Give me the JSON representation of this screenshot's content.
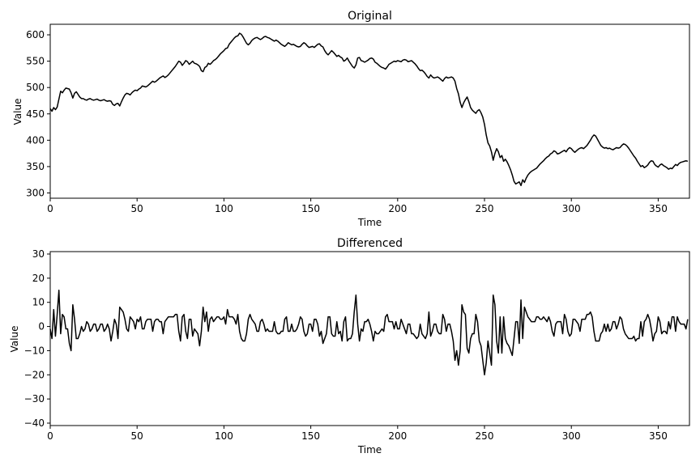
{
  "chart_data": [
    {
      "type": "line",
      "title": "Original",
      "xlabel": "Time",
      "ylabel": "Value",
      "xlim": [
        0,
        368
      ],
      "ylim": [
        290,
        620
      ],
      "xticks": [
        0,
        50,
        100,
        150,
        200,
        250,
        300,
        350
      ],
      "yticks": [
        300,
        350,
        400,
        450,
        500,
        550,
        600
      ],
      "grid": false,
      "line_color": "#000000",
      "series": [
        {
          "x_start": 0,
          "x_step": 1,
          "values": [
            460,
            455,
            462,
            458,
            463,
            478,
            493,
            490,
            495,
            499,
            498,
            497,
            490,
            480,
            489,
            492,
            487,
            482,
            479,
            479,
            477,
            476,
            478,
            479,
            477,
            476,
            477,
            478,
            476,
            475,
            476,
            477,
            475,
            474,
            475,
            474,
            468,
            466,
            469,
            470,
            465,
            473,
            480,
            486,
            489,
            488,
            486,
            490,
            493,
            495,
            494,
            497,
            499,
            503,
            502,
            501,
            503,
            506,
            509,
            512,
            510,
            512,
            515,
            518,
            520,
            522,
            519,
            521,
            524,
            528,
            532,
            536,
            540,
            545,
            550,
            548,
            542,
            546,
            551,
            549,
            544,
            547,
            550,
            546,
            545,
            543,
            540,
            532,
            530,
            538,
            540,
            546,
            544,
            547,
            551,
            553,
            556,
            560,
            564,
            567,
            570,
            574,
            575,
            582,
            586,
            590,
            594,
            597,
            598,
            603,
            601,
            596,
            590,
            584,
            581,
            584,
            589,
            592,
            594,
            595,
            593,
            591,
            593,
            596,
            597,
            595,
            594,
            592,
            590,
            588,
            590,
            588,
            585,
            582,
            580,
            578,
            581,
            585,
            583,
            581,
            582,
            580,
            578,
            577,
            578,
            582,
            585,
            583,
            579,
            576,
            577,
            578,
            576,
            579,
            582,
            583,
            579,
            577,
            570,
            565,
            562,
            566,
            570,
            567,
            563,
            559,
            561,
            558,
            556,
            550,
            552,
            556,
            550,
            545,
            540,
            537,
            543,
            556,
            557,
            551,
            550,
            548,
            550,
            552,
            555,
            556,
            554,
            548,
            546,
            543,
            540,
            538,
            537,
            535,
            539,
            544,
            546,
            548,
            550,
            549,
            551,
            550,
            549,
            552,
            553,
            552,
            549,
            550,
            551,
            548,
            545,
            541,
            536,
            532,
            533,
            530,
            526,
            521,
            518,
            524,
            520,
            518,
            519,
            520,
            518,
            515,
            512,
            517,
            520,
            518,
            519,
            520,
            518,
            512,
            498,
            488,
            472,
            462,
            471,
            477,
            482,
            473,
            462,
            457,
            454,
            451,
            456,
            458,
            452,
            444,
            430,
            410,
            395,
            389,
            378,
            362,
            375,
            384,
            378,
            367,
            371,
            360,
            364,
            359,
            352,
            344,
            334,
            322,
            317,
            319,
            321,
            314,
            325,
            320,
            328,
            334,
            338,
            341,
            343,
            345,
            347,
            351,
            355,
            358,
            361,
            365,
            368,
            370,
            374,
            376,
            380,
            378,
            374,
            375,
            377,
            379,
            381,
            378,
            383,
            386,
            384,
            380,
            377,
            380,
            383,
            385,
            386,
            384,
            387,
            390,
            395,
            400,
            406,
            410,
            408,
            402,
            396,
            390,
            387,
            385,
            386,
            384,
            385,
            383,
            382,
            384,
            386,
            385,
            386,
            390,
            393,
            392,
            389,
            385,
            380,
            375,
            370,
            366,
            360,
            355,
            350,
            352,
            348,
            350,
            353,
            358,
            361,
            360,
            354,
            351,
            349,
            353,
            355,
            352,
            350,
            348,
            345,
            347,
            346,
            350,
            354,
            352,
            356,
            358,
            359,
            360,
            361,
            360
          ]
        }
      ]
    },
    {
      "type": "line",
      "title": "Differenced",
      "xlabel": "Time",
      "ylabel": "Value",
      "xlim": [
        0,
        368
      ],
      "ylim": [
        -41,
        31
      ],
      "xticks": [
        0,
        50,
        100,
        150,
        200,
        250,
        300,
        350
      ],
      "yticks": [
        -40,
        -30,
        -20,
        -10,
        0,
        10,
        20,
        30
      ],
      "grid": false,
      "line_color": "#000000",
      "series": [
        {
          "x_start": 0,
          "x_step": 1,
          "values": [
            -1,
            -5,
            7,
            -4,
            5,
            15,
            -3,
            5,
            4,
            -1,
            -1,
            -7,
            -10,
            9,
            3,
            -5,
            -5,
            -3,
            0,
            -2,
            -1,
            2,
            1,
            -2,
            -1,
            1,
            1,
            -2,
            -1,
            1,
            1,
            -2,
            -1,
            1,
            -1,
            -6,
            -2,
            3,
            1,
            -5,
            8,
            7,
            6,
            3,
            -1,
            -2,
            4,
            3,
            2,
            -1,
            3,
            2,
            4,
            -1,
            -1,
            2,
            3,
            3,
            3,
            -2,
            2,
            3,
            3,
            2,
            2,
            -3,
            2,
            3,
            4,
            4,
            4,
            4,
            5,
            5,
            -2,
            -6,
            4,
            5,
            -2,
            -5,
            3,
            3,
            -4,
            -1,
            -2,
            -3,
            -8,
            -2,
            8,
            2,
            6,
            -2,
            3,
            4,
            2,
            3,
            4,
            4,
            3,
            3,
            4,
            1,
            7,
            4,
            4,
            4,
            3,
            1,
            5,
            -2,
            -5,
            -6,
            -6,
            -3,
            3,
            5,
            3,
            2,
            1,
            -2,
            -2,
            2,
            3,
            1,
            -2,
            -1,
            -2,
            -2,
            -2,
            2,
            -2,
            -3,
            -3,
            -2,
            -2,
            3,
            4,
            -2,
            -2,
            1,
            -2,
            -2,
            -1,
            1,
            4,
            3,
            -2,
            -4,
            -3,
            1,
            1,
            -2,
            3,
            3,
            1,
            -4,
            -2,
            -7,
            -5,
            -3,
            4,
            4,
            -3,
            -4,
            -4,
            2,
            -3,
            -2,
            -6,
            2,
            4,
            -6,
            -5,
            -5,
            -3,
            6,
            13,
            1,
            -6,
            -1,
            -2,
            2,
            2,
            3,
            1,
            -2,
            -6,
            -2,
            -3,
            -3,
            -2,
            -1,
            -2,
            4,
            5,
            2,
            2,
            2,
            -1,
            2,
            -1,
            -1,
            3,
            1,
            -1,
            -3,
            1,
            1,
            -3,
            -3,
            -4,
            -5,
            -4,
            1,
            -3,
            -4,
            -5,
            -3,
            6,
            -4,
            -2,
            1,
            1,
            -2,
            -3,
            -3,
            5,
            3,
            -2,
            1,
            1,
            -2,
            -6,
            -14,
            -10,
            -16,
            -10,
            9,
            6,
            5,
            -9,
            -11,
            -5,
            -3,
            -3,
            5,
            2,
            -6,
            -8,
            -14,
            -20,
            -15,
            -6,
            -11,
            -16,
            13,
            9,
            -6,
            -11,
            4,
            -11,
            4,
            -5,
            -7,
            -8,
            -10,
            -12,
            -5,
            2,
            2,
            -7,
            11,
            -5,
            8,
            6,
            4,
            3,
            2,
            2,
            2,
            4,
            4,
            3,
            3,
            4,
            3,
            2,
            4,
            2,
            -2,
            -4,
            1,
            2,
            2,
            2,
            -3,
            5,
            3,
            -2,
            -4,
            -3,
            3,
            3,
            2,
            1,
            -2,
            3,
            3,
            3,
            5,
            5,
            6,
            4,
            -2,
            -6,
            -6,
            -6,
            -3,
            -2,
            1,
            -2,
            1,
            -2,
            -1,
            2,
            2,
            -1,
            1,
            4,
            3,
            -1,
            -3,
            -4,
            -5,
            -5,
            -5,
            -4,
            -6,
            -5,
            -5,
            2,
            -4,
            2,
            3,
            5,
            3,
            -1,
            -6,
            -3,
            -2,
            4,
            2,
            -3,
            -2,
            -2,
            -3,
            2,
            -1,
            4,
            4,
            -2,
            4,
            2,
            1,
            1,
            1,
            -1,
            3
          ]
        }
      ]
    }
  ]
}
